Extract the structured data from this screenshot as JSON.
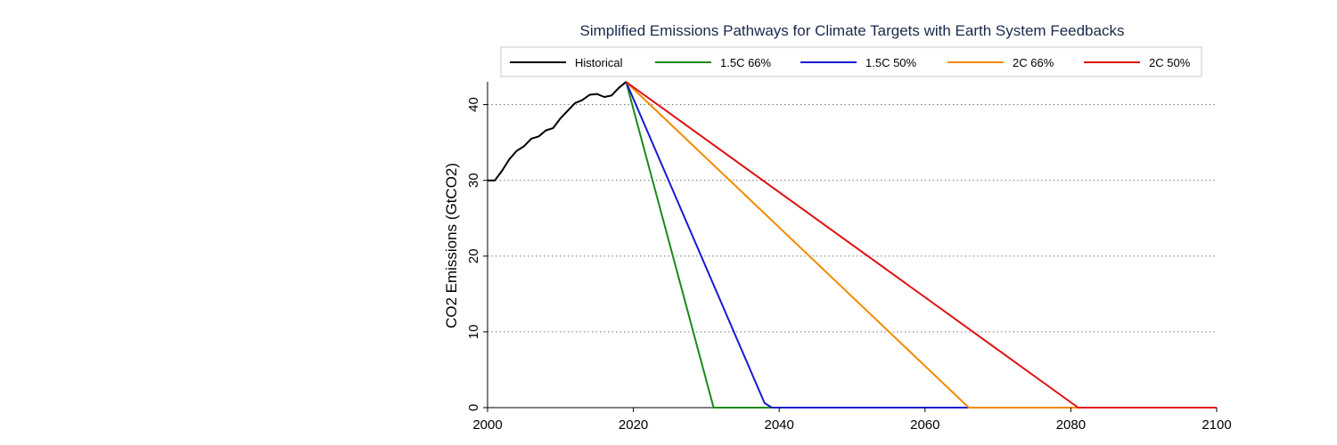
{
  "chart_data": {
    "type": "line",
    "title": "Simplified Emissions Pathways for Climate Targets with Earth System Feedbacks",
    "xlabel": "",
    "ylabel": "CO2 Emissions (GtCO2)",
    "xlim": [
      2000,
      2100
    ],
    "ylim": [
      0,
      43
    ],
    "xticks": [
      2000,
      2020,
      2040,
      2060,
      2080,
      2100
    ],
    "yticks": [
      0,
      10,
      20,
      30,
      40
    ],
    "grid": "horizontal-dotted",
    "legend_position": "top",
    "series": [
      {
        "name": "Historical",
        "color": "#000000",
        "points": [
          [
            2000,
            30.0
          ],
          [
            2001,
            30.0
          ],
          [
            2002,
            31.3
          ],
          [
            2003,
            32.8
          ],
          [
            2004,
            33.9
          ],
          [
            2005,
            34.5
          ],
          [
            2006,
            35.5
          ],
          [
            2007,
            35.8
          ],
          [
            2008,
            36.6
          ],
          [
            2009,
            36.9
          ],
          [
            2010,
            38.2
          ],
          [
            2011,
            39.2
          ],
          [
            2012,
            40.2
          ],
          [
            2013,
            40.6
          ],
          [
            2014,
            41.3
          ],
          [
            2015,
            41.4
          ],
          [
            2016,
            41.0
          ],
          [
            2017,
            41.2
          ],
          [
            2018,
            42.2
          ],
          [
            2019,
            43.0
          ]
        ]
      },
      {
        "name": "1.5C 66%",
        "color": "#1a8a1a",
        "points": [
          [
            2019,
            43.0
          ],
          [
            2031,
            0
          ],
          [
            2100,
            0
          ]
        ]
      },
      {
        "name": "1.5C 50%",
        "color": "#1a1ad0",
        "points": [
          [
            2019,
            43.0
          ],
          [
            2038,
            0.6
          ],
          [
            2039,
            0
          ],
          [
            2100,
            0
          ]
        ]
      },
      {
        "name": "2C 66%",
        "color": "#f08a00",
        "points": [
          [
            2019,
            43.0
          ],
          [
            2066,
            0
          ],
          [
            2100,
            0
          ]
        ]
      },
      {
        "name": "2C 50%",
        "color": "#e01010",
        "points": [
          [
            2019,
            43.0
          ],
          [
            2081,
            0
          ],
          [
            2100,
            0
          ]
        ]
      }
    ]
  }
}
